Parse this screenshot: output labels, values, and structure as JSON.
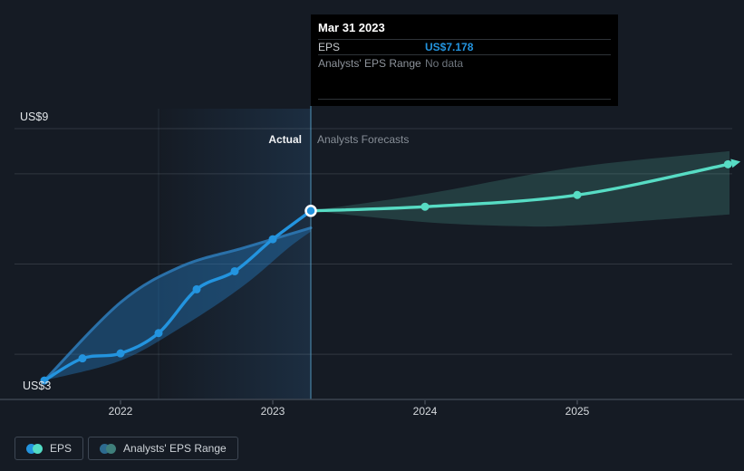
{
  "page": {
    "background": "#151b24"
  },
  "tooltip": {
    "title": "Mar 31 2023",
    "rows": [
      {
        "label": "EPS",
        "value": "US$7.178",
        "value_color": "#2394df"
      },
      {
        "label": "Analysts' EPS Range",
        "value": "No data",
        "value_color": "#6f767e"
      }
    ]
  },
  "legend": {
    "items": [
      {
        "label": "EPS",
        "swatch_colors": [
          "#2394df",
          "#53dcc5"
        ]
      },
      {
        "label": "Analysts' EPS Range",
        "swatch_colors": [
          "#2d6b90",
          "#3f7f7b"
        ]
      }
    ]
  },
  "chart_data": {
    "type": "line",
    "title": "EPS actual versus analysts forecasts",
    "region_labels": {
      "actual": "Actual",
      "forecast": "Analysts Forecasts"
    },
    "y_axis": {
      "min": 3,
      "max": 9,
      "top_label": "US$9",
      "bottom_label": "US$3",
      "gridline_values": [
        9,
        8,
        6,
        4
      ],
      "baseline_value": 3
    },
    "x_axis": {
      "ticks": [
        {
          "label": "2022",
          "x": 2022
        },
        {
          "label": "2023",
          "x": 2023
        },
        {
          "label": "2024",
          "x": 2024
        },
        {
          "label": "2025",
          "x": 2025
        }
      ]
    },
    "divider_x": 2023.25,
    "highlight_range": [
      2022.25,
      2023.25
    ],
    "highlight_color": "#3b82c4",
    "divider_color": "#56a0c8",
    "series": [
      {
        "name": "EPS",
        "segment": "actual",
        "color": "#2394df",
        "points": [
          [
            2021.5,
            3.42
          ],
          [
            2021.75,
            3.91
          ],
          [
            2022.0,
            4.02
          ],
          [
            2022.25,
            4.47
          ],
          [
            2022.5,
            5.44
          ],
          [
            2022.75,
            5.84
          ],
          [
            2023.0,
            6.55
          ],
          [
            2023.25,
            7.178
          ]
        ],
        "endpoint_highlighted": true
      },
      {
        "name": "EPS",
        "segment": "forecast",
        "color": "#57dcc4",
        "points": [
          [
            2023.25,
            7.178
          ],
          [
            2024.0,
            7.27
          ],
          [
            2025.0,
            7.53
          ],
          [
            2025.99,
            8.21
          ]
        ],
        "arrow_end": true
      }
    ],
    "bands": [
      {
        "name": "Analysts' EPS Range",
        "segment": "actual",
        "fill": "rgba(35,116,180,0.45)",
        "edge_color": "rgba(44,120,180,0.9)",
        "upper": [
          [
            2021.5,
            3.42
          ],
          [
            2022.0,
            5.15
          ],
          [
            2022.4,
            5.95
          ],
          [
            2022.8,
            6.35
          ],
          [
            2023.1,
            6.65
          ],
          [
            2023.25,
            6.8
          ]
        ],
        "lower": [
          [
            2021.5,
            3.42
          ],
          [
            2022.0,
            3.86
          ],
          [
            2022.4,
            4.6
          ],
          [
            2022.8,
            5.5
          ],
          [
            2023.1,
            6.35
          ],
          [
            2023.25,
            6.72
          ]
        ]
      },
      {
        "name": "Analysts' EPS Range",
        "segment": "forecast",
        "fill": "rgba(85,180,165,0.22)",
        "edge_color": null,
        "upper": [
          [
            2023.25,
            7.18
          ],
          [
            2024.0,
            7.55
          ],
          [
            2025.0,
            8.15
          ],
          [
            2026.0,
            8.5
          ]
        ],
        "lower": [
          [
            2023.25,
            7.18
          ],
          [
            2024.0,
            6.93
          ],
          [
            2024.6,
            6.84
          ],
          [
            2025.0,
            6.86
          ],
          [
            2026.0,
            7.1
          ]
        ]
      }
    ]
  }
}
